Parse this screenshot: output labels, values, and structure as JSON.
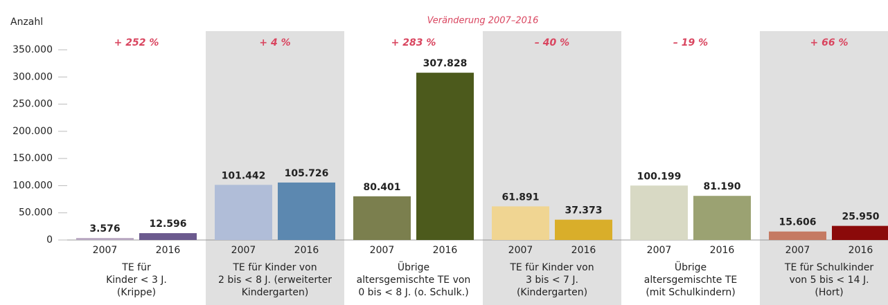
{
  "chart_data": {
    "type": "bar",
    "ylabel": "Anzahl",
    "annotation": "Veränderung 2007–2016",
    "categories": [
      [
        "TE für",
        "Kinder < 3 J.",
        "(Krippe)"
      ],
      [
        "TE für Kinder von",
        "2 bis < 8 J. (erweiterter",
        "Kindergarten)"
      ],
      [
        "Übrige",
        "altersgemischte TE von",
        "0 bis < 8 J. (o. Schulk.)"
      ],
      [
        "TE für Kinder von",
        "3 bis < 7 J.",
        "(Kindergarten)"
      ],
      [
        "Übrige",
        "altersgemischte TE",
        "(mit Schulkindern)"
      ],
      [
        "TE für Schulkinder",
        "von 5 bis < 14 J.",
        "(Hort)"
      ]
    ],
    "changes": [
      "+ 252 %",
      "+ 4 %",
      "+ 283 %",
      "– 40 %",
      "– 19 %",
      "+ 66 %"
    ],
    "series": [
      {
        "name": "2007",
        "colors": [
          "#b7a6c0",
          "#b0bdd8",
          "#7b7f4e",
          "#f0d592",
          "#d8d9c4",
          "#c57a62"
        ],
        "values": [
          3576,
          101442,
          80401,
          61891,
          100199,
          15606
        ],
        "value_labels": [
          "3.576",
          "101.442",
          "80.401",
          "61.891",
          "100.199",
          "15.606"
        ]
      },
      {
        "name": "2016",
        "colors": [
          "#6b5a8e",
          "#5c88b0",
          "#4c5a1c",
          "#d9ae2a",
          "#9ba272",
          "#8b0a0a"
        ],
        "values": [
          12596,
          105726,
          307828,
          37373,
          81190,
          25950
        ],
        "value_labels": [
          "12.596",
          "105.726",
          "307.828",
          "37.373",
          "81.190",
          "25.950"
        ]
      }
    ],
    "ylim": [
      0,
      350000
    ],
    "yticks": [
      0,
      {
        "value": 50000,
        "label": "50.000"
      },
      {
        "value": 100000,
        "label": "100.000"
      },
      {
        "value": 150000,
        "label": "150.000"
      },
      {
        "value": 200000,
        "label": "200.000"
      },
      {
        "value": 250000,
        "label": "250.000"
      },
      {
        "value": 300000,
        "label": "300.000"
      },
      {
        "value": 350000,
        "label": "350.000"
      }
    ]
  }
}
